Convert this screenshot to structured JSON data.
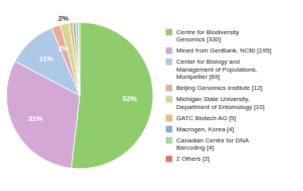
{
  "chart_data": {
    "type": "pie",
    "categories": [
      "Centre for Biodiversity\nGenomics [330]",
      "Mined from GenBank, NCBI [195]",
      "Center for Biology and\nManagement of Populations,\nMontpellier [69]",
      "Beijing Genomics Institute [12]",
      "Michigan State University,\nDepartment of Entomology [10]",
      "GATC Biotech AG [5]",
      "Macrogen, Korea [4]",
      "Canadian Centre for DNA\nBarcoding [4]",
      "2 Others [2]"
    ],
    "values": [
      52,
      31,
      11,
      2,
      2,
      0.8,
      0.6,
      0.6,
      0.3
    ],
    "value_labels": [
      "52%",
      "31%",
      "11%",
      "2%",
      "2%",
      null,
      null,
      null,
      null
    ],
    "colors": [
      "#8fcc6c",
      "#d4a8d4",
      "#aec8e8",
      "#e8a8a0",
      "#d4d890",
      "#f0b870",
      "#78b0d8",
      "#b0d4a0",
      "#e87060"
    ],
    "data_labels": true,
    "legend": "right"
  }
}
